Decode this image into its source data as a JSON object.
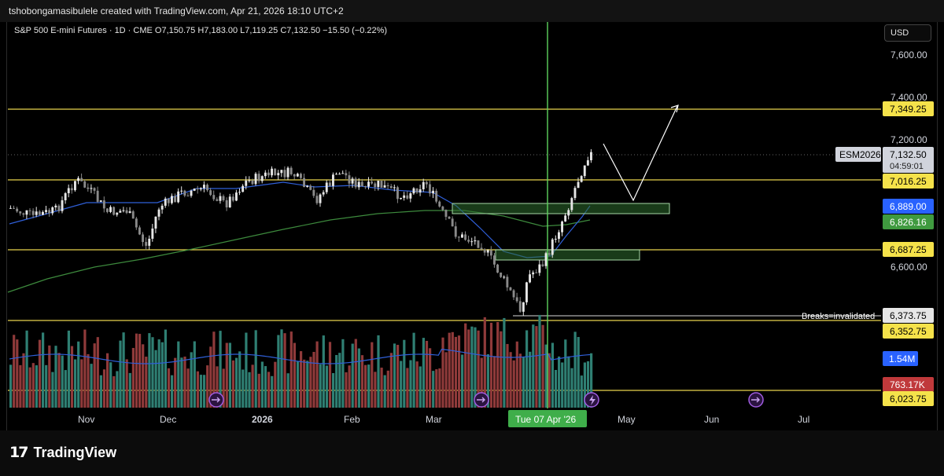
{
  "header": {
    "attribution": "tshobongamasibulele created with TradingView.com, Apr 21, 2026 18:10 UTC+2"
  },
  "legend": {
    "text": "S&P 500 E-mini Futures · 1D · CME  O7,150.75  H7,183.00  L7,119.25  C7,132.50  −15.50 (−0.22%)"
  },
  "currency_button": "USD",
  "price_axis": {
    "ticks": [
      "7,600.00",
      "7,400.00",
      "7,200.00",
      "6,600.00"
    ]
  },
  "price_labels": {
    "level_7349": "7,349.25",
    "ticker": "ESM2026",
    "last_price": "7,132.50",
    "countdown": "04:59:01",
    "level_7016": "7,016.25",
    "ma_blue": "6,889.00",
    "ma_green": "6,826.16",
    "level_6687": "6,687.25",
    "invalidation": "6,373.75",
    "level_6352": "6,352.75",
    "volume_ma": "1.54M",
    "volume": "763.17K",
    "level_6023": "6,023.75"
  },
  "annotation_text": "Breaks=invalidated",
  "time_axis": {
    "labels": [
      "Nov",
      "Dec",
      "2026",
      "Feb",
      "Mar",
      "May",
      "Jun",
      "Jul"
    ],
    "crosshair_date": "Tue 07 Apr '26"
  },
  "brand": {
    "name": "TradingView",
    "mark": "17"
  },
  "colors": {
    "up": "#e6e6e6",
    "down": "#8a8a8a",
    "level_line": "#e8d44d",
    "ma_blue": "#2f5fd8",
    "ma_green": "#3d8a3d",
    "zone": "#2e6b2e",
    "crosshair": "#5fd35f",
    "vol_up": "#2f7f73",
    "vol_down": "#8f3a3a"
  }
}
